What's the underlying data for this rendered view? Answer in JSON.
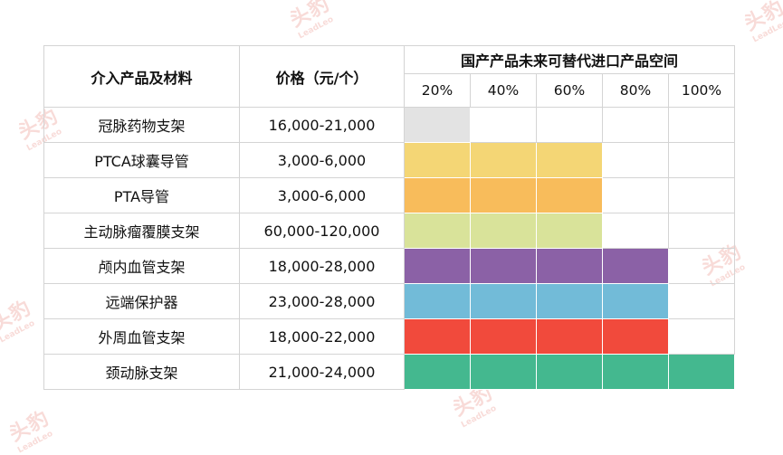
{
  "chart_data": {
    "type": "table",
    "columns": {
      "product": "介入产品及材料",
      "price": "价格（元/个）",
      "space": "国产产品未来可替代进口产品空间"
    },
    "levels": [
      "20%",
      "40%",
      "60%",
      "80%",
      "100%"
    ],
    "rows": [
      {
        "name": "冠脉药物支架",
        "price": "16,000-21,000",
        "substitution_pct": 20,
        "color": "#e3e3e3"
      },
      {
        "name": "PTCA球囊导管",
        "price": "3,000-6,000",
        "substitution_pct": 60,
        "color": "#f4d675"
      },
      {
        "name": "PTA导管",
        "price": "3,000-6,000",
        "substitution_pct": 60,
        "color": "#f8bc5b"
      },
      {
        "name": "主动脉瘤覆膜支架",
        "price": "60,000-120,000",
        "substitution_pct": 60,
        "color": "#d9e39a"
      },
      {
        "name": "颅内血管支架",
        "price": "18,000-28,000",
        "substitution_pct": 80,
        "color": "#8b61a6"
      },
      {
        "name": "远端保护器",
        "price": "23,000-28,000",
        "substitution_pct": 80,
        "color": "#72bbd8"
      },
      {
        "name": "外周血管支架",
        "price": "18,000-22,000",
        "substitution_pct": 80,
        "color": "#f14a3c"
      },
      {
        "name": "颈动脉支架",
        "price": "21,000-24,000",
        "substitution_pct": 100,
        "color": "#44b88f"
      }
    ]
  },
  "watermark": {
    "zh": "头豹",
    "en": "LeadLeo"
  }
}
